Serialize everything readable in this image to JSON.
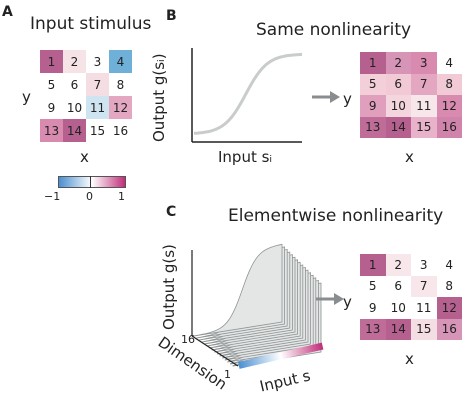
{
  "panels": {
    "a": {
      "letter": "A",
      "title": "Input stimulus",
      "ylabel": "y",
      "xlabel": "x",
      "cells": [
        {
          "label": "1",
          "color": "#b5608f"
        },
        {
          "label": "2",
          "color": "#f6e3e6"
        },
        {
          "label": "3",
          "color": "#ffffff"
        },
        {
          "label": "4",
          "color": "#6fb0d8"
        },
        {
          "label": "5",
          "color": "#ffffff"
        },
        {
          "label": "6",
          "color": "#ffffff"
        },
        {
          "label": "7",
          "color": "#f4dde3"
        },
        {
          "label": "8",
          "color": "#ffffff"
        },
        {
          "label": "9",
          "color": "#ffffff"
        },
        {
          "label": "10",
          "color": "#ffffff"
        },
        {
          "label": "11",
          "color": "#cfe4f1"
        },
        {
          "label": "12",
          "color": "#e4a7c2"
        },
        {
          "label": "13",
          "color": "#d98aaf"
        },
        {
          "label": "14",
          "color": "#b5608f"
        },
        {
          "label": "15",
          "color": "#ffffff"
        },
        {
          "label": "16",
          "color": "#ffffff"
        }
      ],
      "colorbar": {
        "ticks": [
          "−1",
          "0",
          "1"
        ],
        "colors": [
          "#4a8fd0",
          "#ffffff",
          "#c02d78"
        ]
      }
    },
    "b": {
      "letter": "B",
      "title": "Same nonlinearity",
      "curve_ylabel": "Output g(sᵢ)",
      "curve_xlabel": "Input sᵢ",
      "curve_color": "#c9cccc",
      "ylabel": "y",
      "xlabel": "x",
      "cells": [
        {
          "label": "1",
          "color": "#b5608f"
        },
        {
          "label": "2",
          "color": "#d695b7"
        },
        {
          "label": "3",
          "color": "#d98aaf"
        },
        {
          "label": "4",
          "color": "#ffffff"
        },
        {
          "label": "5",
          "color": "#f2cfd9"
        },
        {
          "label": "6",
          "color": "#f1cad6"
        },
        {
          "label": "7",
          "color": "#e4a7c2"
        },
        {
          "label": "8",
          "color": "#f1cad6"
        },
        {
          "label": "9",
          "color": "#e0a0bd"
        },
        {
          "label": "10",
          "color": "#f3d6de"
        },
        {
          "label": "11",
          "color": "#f7e6ea"
        },
        {
          "label": "12",
          "color": "#d98aaf"
        },
        {
          "label": "13",
          "color": "#c06c99"
        },
        {
          "label": "14",
          "color": "#b5608f"
        },
        {
          "label": "15",
          "color": "#e8b3ca"
        },
        {
          "label": "16",
          "color": "#d084ab"
        }
      ]
    },
    "c": {
      "letter": "C",
      "title": "Elementwise nonlinearity",
      "surface_ylabel": "Output g(s)",
      "dimension_label": "Dimension",
      "dimension_ticks": [
        "16",
        "1"
      ],
      "input_label": "Input s",
      "ylabel": "y",
      "xlabel": "x",
      "cells": [
        {
          "label": "1",
          "color": "#b5608f"
        },
        {
          "label": "2",
          "color": "#f7e6ea"
        },
        {
          "label": "3",
          "color": "#ffffff"
        },
        {
          "label": "4",
          "color": "#ffffff"
        },
        {
          "label": "5",
          "color": "#ffffff"
        },
        {
          "label": "6",
          "color": "#ffffff"
        },
        {
          "label": "7",
          "color": "#f7e6ea"
        },
        {
          "label": "8",
          "color": "#ffffff"
        },
        {
          "label": "9",
          "color": "#ffffff"
        },
        {
          "label": "10",
          "color": "#ffffff"
        },
        {
          "label": "11",
          "color": "#ffffff"
        },
        {
          "label": "12",
          "color": "#b5608f"
        },
        {
          "label": "13",
          "color": "#c06c99"
        },
        {
          "label": "14",
          "color": "#b5608f"
        },
        {
          "label": "15",
          "color": "#f4dde3"
        },
        {
          "label": "16",
          "color": "#d695b7"
        }
      ]
    }
  },
  "arrow_color": "#8a8d8f"
}
